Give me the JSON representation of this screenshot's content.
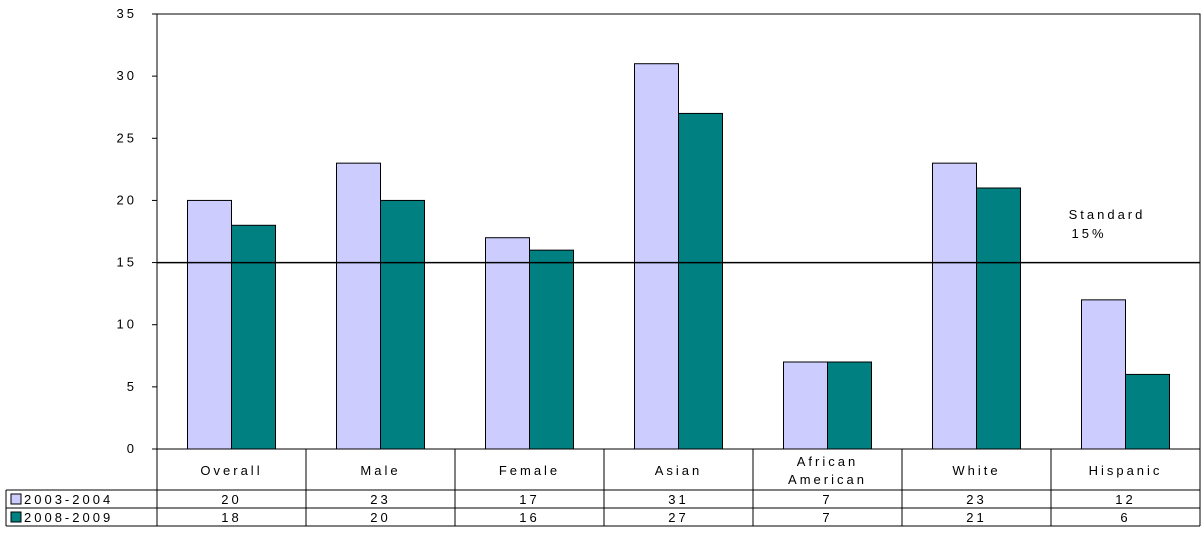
{
  "chart_data": {
    "type": "bar",
    "categories": [
      "Overall",
      "Male",
      "Female",
      "Asian",
      "African\nAmerican",
      "White",
      "Hispanic"
    ],
    "series": [
      {
        "name": "2003-2004",
        "values": [
          20,
          23,
          17,
          31,
          7,
          23,
          12
        ],
        "color": "#ccccff"
      },
      {
        "name": "2008-2009",
        "values": [
          18,
          20,
          16,
          27,
          7,
          21,
          6
        ],
        "color": "#008080"
      }
    ],
    "title": "",
    "xlabel": "",
    "ylabel": "",
    "ylim": [
      0,
      35
    ],
    "yticks": [
      0,
      5,
      10,
      15,
      20,
      25,
      30,
      35
    ],
    "grid": false,
    "data_table": true,
    "reference_line": {
      "value": 15,
      "label_line1": "Standard",
      "label_line2": "15%"
    }
  }
}
